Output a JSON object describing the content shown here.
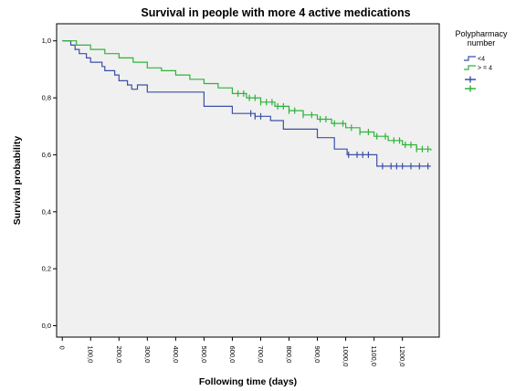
{
  "chart_data": {
    "type": "line",
    "title": "Survival in people with more 4 active medications",
    "xlabel": "Following time (days)",
    "ylabel": "Survival probability",
    "xlim": [
      -20,
      1330
    ],
    "ylim": [
      -0.04,
      1.06
    ],
    "x_ticks": [
      "0",
      "100,0",
      "200,0",
      "300,0",
      "400,0",
      "500,0",
      "600,0",
      "700,0",
      "800,0",
      "900,0",
      "1000,0",
      "1100,0",
      "1200,0"
    ],
    "x_tick_values": [
      0,
      100,
      200,
      300,
      400,
      500,
      600,
      700,
      800,
      900,
      1000,
      1100,
      1200
    ],
    "y_ticks": [
      "0,0",
      "0,2",
      "0,4",
      "0,6",
      "0,8",
      "1,0"
    ],
    "y_tick_values": [
      0.0,
      0.2,
      0.4,
      0.6,
      0.8,
      1.0
    ],
    "grid": false,
    "legend": {
      "title_line1": "Polypharmacy",
      "title_line2": "number",
      "placement": "right",
      "entries": [
        "<4",
        "> = 4"
      ]
    },
    "series": [
      {
        "name": "<4",
        "color": "#3b4fa8",
        "x": [
          0,
          20,
          30,
          45,
          60,
          85,
          100,
          140,
          150,
          185,
          200,
          230,
          245,
          265,
          300,
          380,
          420,
          440,
          500,
          590,
          600,
          660,
          680,
          735,
          780,
          900,
          955,
          960,
          1000,
          1005,
          1020,
          1050,
          1100,
          1110,
          1300
        ],
        "y": [
          1.0,
          1.0,
          0.985,
          0.97,
          0.955,
          0.94,
          0.925,
          0.91,
          0.895,
          0.88,
          0.86,
          0.845,
          0.83,
          0.845,
          0.82,
          0.82,
          0.82,
          0.82,
          0.77,
          0.77,
          0.745,
          0.745,
          0.735,
          0.72,
          0.69,
          0.66,
          0.66,
          0.62,
          0.62,
          0.6,
          0.6,
          0.6,
          0.6,
          0.56,
          0.56
        ],
        "censored_x": [
          665,
          680,
          700,
          1010,
          1040,
          1060,
          1080,
          1130,
          1160,
          1180,
          1200,
          1230,
          1260,
          1290
        ]
      },
      {
        "name": "> = 4",
        "color": "#2fb23a",
        "x": [
          0,
          50,
          100,
          150,
          200,
          250,
          300,
          350,
          400,
          450,
          500,
          550,
          600,
          650,
          700,
          750,
          800,
          850,
          900,
          950,
          1000,
          1050,
          1100,
          1150,
          1200,
          1250,
          1300
        ],
        "y": [
          1.0,
          0.985,
          0.97,
          0.955,
          0.94,
          0.925,
          0.905,
          0.895,
          0.88,
          0.865,
          0.85,
          0.835,
          0.815,
          0.8,
          0.785,
          0.77,
          0.755,
          0.74,
          0.725,
          0.71,
          0.695,
          0.68,
          0.665,
          0.65,
          0.635,
          0.62,
          0.615
        ],
        "censored_x": [
          620,
          640,
          660,
          680,
          700,
          720,
          740,
          760,
          780,
          800,
          820,
          850,
          880,
          910,
          930,
          960,
          990,
          1020,
          1050,
          1080,
          1110,
          1140,
          1170,
          1190,
          1210,
          1230,
          1250,
          1270,
          1290
        ]
      }
    ]
  }
}
